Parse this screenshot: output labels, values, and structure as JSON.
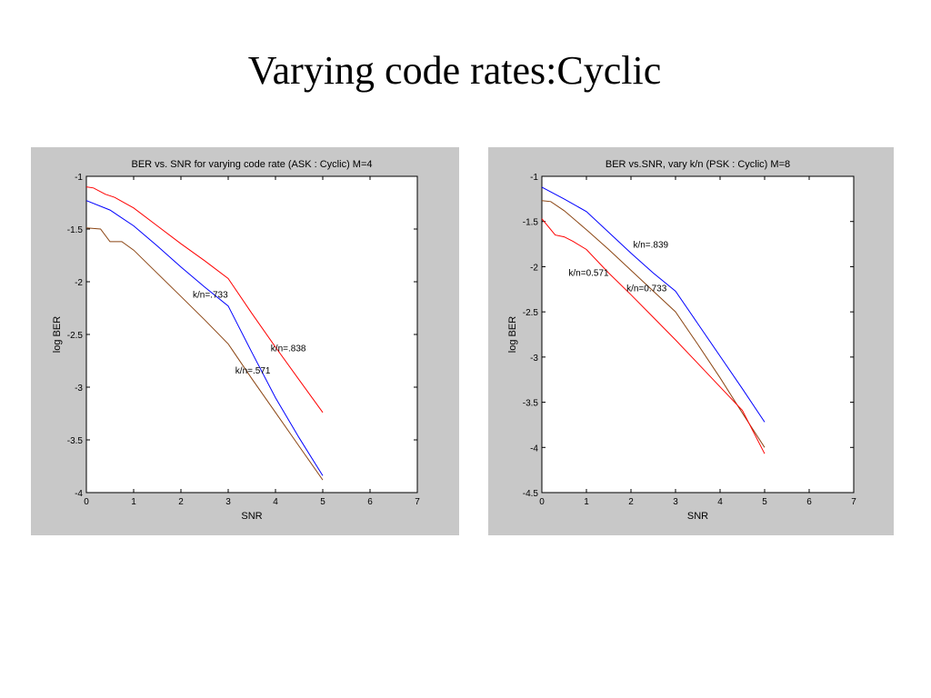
{
  "slide": {
    "title": "Varying code rates:Cyclic"
  },
  "chart_data": [
    {
      "type": "line",
      "title": "BER vs. SNR for varying code rate (ASK : Cyclic) M=4",
      "xlabel": "SNR",
      "ylabel": "log BER",
      "xlim": [
        0,
        7
      ],
      "ylim": [
        -4,
        -1
      ],
      "xticks": [
        0,
        1,
        2,
        3,
        4,
        5,
        6,
        7
      ],
      "yticks": [
        -1,
        -1.5,
        -2,
        -2.5,
        -3,
        -3.5,
        -4
      ],
      "grid": false,
      "series": [
        {
          "color": "#ff0000",
          "x": [
            0,
            0.15,
            0.4,
            0.6,
            1.0,
            1.5,
            2.0,
            2.5,
            3.0,
            3.5,
            4.0,
            4.5,
            5.0
          ],
          "y": [
            -1.1,
            -1.11,
            -1.17,
            -1.2,
            -1.3,
            -1.47,
            -1.64,
            -1.8,
            -1.97,
            -2.3,
            -2.62,
            -2.93,
            -3.24
          ]
        },
        {
          "color": "#0000ff",
          "x": [
            0,
            0.5,
            1.0,
            1.5,
            2.0,
            2.5,
            3.0,
            3.5,
            4.0,
            4.5,
            5.0
          ],
          "y": [
            -1.23,
            -1.32,
            -1.47,
            -1.66,
            -1.86,
            -2.05,
            -2.23,
            -2.67,
            -3.1,
            -3.48,
            -3.84
          ]
        },
        {
          "color": "#8b4513",
          "x": [
            0,
            0.3,
            0.5,
            0.75,
            1.0,
            1.5,
            2.0,
            2.5,
            3.0,
            3.5,
            4.0,
            4.5,
            5.0
          ],
          "y": [
            -1.49,
            -1.5,
            -1.62,
            -1.62,
            -1.7,
            -1.92,
            -2.14,
            -2.36,
            -2.59,
            -2.92,
            -3.24,
            -3.56,
            -3.88
          ]
        }
      ],
      "annotations": [
        {
          "text": "k/n=.733",
          "x": 2.25,
          "y": -2.15
        },
        {
          "text": "k/n=.838",
          "x": 3.9,
          "y": -2.66
        },
        {
          "text": "k/n=.571",
          "x": 3.15,
          "y": -2.87
        }
      ]
    },
    {
      "type": "line",
      "title": "BER vs.SNR, vary k/n (PSK : Cyclic) M=8",
      "xlabel": "SNR",
      "ylabel": "log BER",
      "xlim": [
        0,
        7
      ],
      "ylim": [
        -4.5,
        -1
      ],
      "xticks": [
        0,
        1,
        2,
        3,
        4,
        5,
        6,
        7
      ],
      "yticks": [
        -1,
        -1.5,
        -2,
        -2.5,
        -3,
        -3.5,
        -4,
        -4.5
      ],
      "grid": false,
      "series": [
        {
          "color": "#0000ff",
          "x": [
            0,
            0.5,
            1.0,
            1.5,
            2.0,
            2.5,
            3.0,
            3.5,
            4.0,
            4.5,
            5.0
          ],
          "y": [
            -1.12,
            -1.25,
            -1.39,
            -1.62,
            -1.85,
            -2.07,
            -2.27,
            -2.63,
            -2.99,
            -3.35,
            -3.72
          ]
        },
        {
          "color": "#8b4513",
          "x": [
            0,
            0.2,
            0.5,
            1.0,
            1.5,
            2.0,
            2.5,
            3.0,
            3.5,
            4.0,
            4.5,
            5.0
          ],
          "y": [
            -1.27,
            -1.28,
            -1.38,
            -1.59,
            -1.81,
            -2.04,
            -2.27,
            -2.5,
            -2.86,
            -3.23,
            -3.62,
            -4.0
          ]
        },
        {
          "color": "#ff0000",
          "x": [
            0,
            0.3,
            0.5,
            0.7,
            1.0,
            1.5,
            2.0,
            2.5,
            3.0,
            3.5,
            4.0,
            4.5,
            5.0
          ],
          "y": [
            -1.47,
            -1.65,
            -1.67,
            -1.72,
            -1.81,
            -2.07,
            -2.31,
            -2.56,
            -2.81,
            -3.07,
            -3.33,
            -3.59,
            -4.07
          ]
        }
      ],
      "annotations": [
        {
          "text": "k/n=.839",
          "x": 2.05,
          "y": -1.79
        },
        {
          "text": "k/n=0.571",
          "x": 0.6,
          "y": -2.1
        },
        {
          "text": "k/n=0.733",
          "x": 1.9,
          "y": -2.27
        }
      ]
    }
  ]
}
